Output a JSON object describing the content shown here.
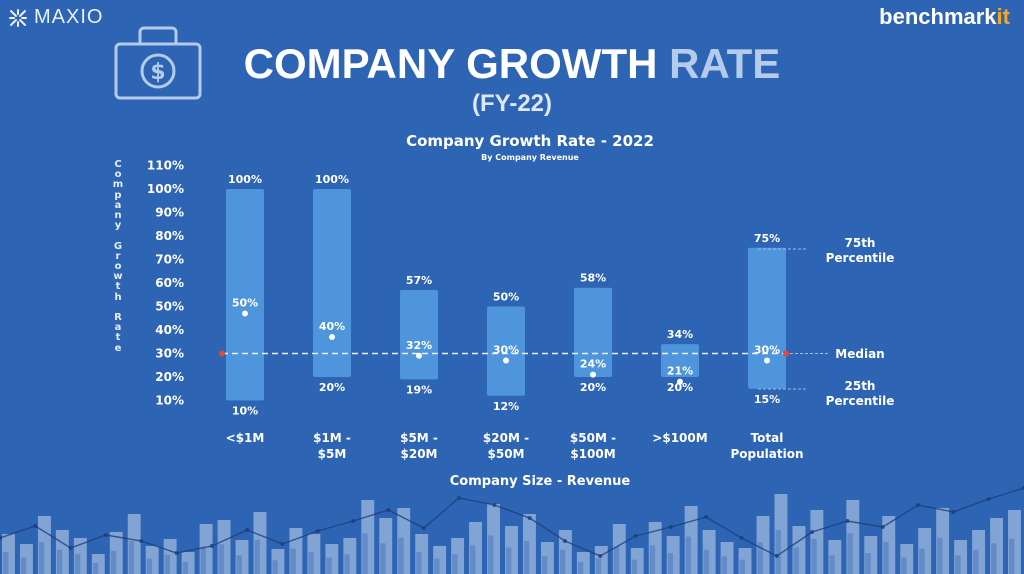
{
  "header": {
    "brand_left": "MAXIO",
    "brand_right_main": "benchmark",
    "brand_right_accent": "it",
    "title_main": "COMPANY GROWTH",
    "title_rest": "RATE",
    "subtitle": "(FY-22)"
  },
  "chart_data": {
    "type": "range-bar",
    "title": "Company Growth Rate - 2022",
    "subtitle": "By Company Revenue",
    "xlabel": "Company Size - Revenue",
    "ylabel": "Company Growth Rate",
    "ylabel_stacked": "C\no\nm\np\na\nn\ny\n\nG\nr\no\nw\nt\nh\n\nR\na\nt\ne",
    "ylim": [
      0,
      110
    ],
    "yticks": [
      "110%",
      "100%",
      "90%",
      "80%",
      "70%",
      "60%",
      "50%",
      "40%",
      "30%",
      "20%",
      "10%"
    ],
    "ytick_values": [
      110,
      100,
      90,
      80,
      70,
      60,
      50,
      40,
      30,
      20,
      10
    ],
    "categories": [
      {
        "line1": "<$1M",
        "line2": "",
        "p25": 10,
        "median": 50,
        "p75": 100,
        "p25_label": "10%",
        "median_label": "50%",
        "p75_label": "100%"
      },
      {
        "line1": "$1M -",
        "line2": "$5M",
        "p25": 20,
        "median": 40,
        "p75": 100,
        "p25_label": "20%",
        "median_label": "40%",
        "p75_label": "100%"
      },
      {
        "line1": "$5M -",
        "line2": "$20M",
        "p25": 19,
        "median": 32,
        "p75": 57,
        "p25_label": "19%",
        "median_label": "32%",
        "p75_label": "57%"
      },
      {
        "line1": "$20M -",
        "line2": "$50M",
        "p25": 12,
        "median": 30,
        "p75": 50,
        "p25_label": "12%",
        "median_label": "30%",
        "p75_label": "50%"
      },
      {
        "line1": "$50M -",
        "line2": "$100M",
        "p25": 20,
        "median": 24,
        "p75": 58,
        "p25_label": "20%",
        "median_label": "24%",
        "p75_label": "58%"
      },
      {
        "line1": ">$100M",
        "line2": "",
        "p25": 20,
        "median": 21,
        "p75": 34,
        "p25_label": "20%",
        "median_label": "21%",
        "p75_label": "34%"
      },
      {
        "line1": "Total",
        "line2": "Population",
        "p25": 15,
        "median": 30,
        "p75": 75,
        "p25_label": "15%",
        "median_label": "30%",
        "p75_label": "75%"
      }
    ],
    "reference_line": {
      "value": 30
    },
    "annotations": {
      "p75_line1": "75th",
      "p75_line2": "Percentile",
      "median": "Median",
      "p25_line1": "25th",
      "p25_line2": "Percentile"
    },
    "colors": {
      "bar": "#4f95dc",
      "line": "#e8eef8",
      "dot": "#e04a3c",
      "text": "#ffffff"
    }
  },
  "decor": {
    "heights": [
      40,
      30,
      58,
      44,
      36,
      20,
      42,
      60,
      28,
      35,
      22,
      50,
      54,
      34,
      62,
      25,
      46,
      40,
      30,
      36,
      74,
      56,
      66,
      40,
      28,
      36,
      52,
      70,
      48,
      60,
      32,
      44,
      22,
      28,
      50,
      26,
      52,
      38,
      68,
      44,
      32,
      26,
      58,
      80,
      48,
      64,
      34,
      74,
      38,
      58,
      30,
      46,
      66,
      34,
      44,
      56,
      64
    ],
    "line_y": [
      538,
      526,
      548,
      535,
      541,
      553,
      546,
      530,
      544,
      531,
      521,
      510,
      528,
      498,
      505,
      518,
      541,
      556,
      536,
      527,
      517,
      538,
      556,
      532,
      521,
      527,
      505,
      512,
      499,
      488
    ]
  }
}
